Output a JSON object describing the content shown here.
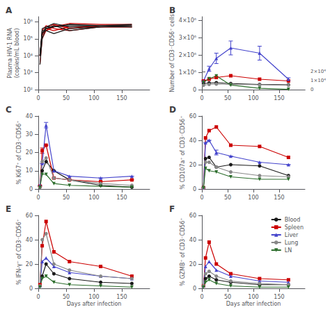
{
  "chart_data": [
    {
      "type": "line",
      "title": "A",
      "ylabel": "Plasma HIV-1 RNA\n(copies/mL blood)",
      "log": "y",
      "grid": false,
      "xlim": [
        0,
        200
      ],
      "xticks": [
        0,
        50,
        100,
        150
      ],
      "ylim": [
        100,
        2000000
      ],
      "yticks": [
        {
          "value": 100,
          "label": "10²"
        },
        {
          "value": 1000,
          "label": "10³"
        },
        {
          "value": 10000,
          "label": "10⁴"
        },
        {
          "value": 100000,
          "label": "10⁵"
        },
        {
          "value": 1000000,
          "label": "10⁶"
        }
      ],
      "x": [
        3,
        7,
        14,
        28,
        56,
        112,
        168
      ],
      "series": [
        {
          "color": "#cc0000",
          "values": [
            10000,
            150000,
            500000,
            700000,
            400000,
            600000,
            600000
          ]
        },
        {
          "color": "#cc0000",
          "values": [
            3000,
            100000,
            300000,
            500000,
            800000,
            700000,
            700000
          ]
        },
        {
          "color": "#cc0000",
          "values": [
            10000,
            200000,
            400000,
            300000,
            500000,
            500000,
            500000
          ]
        },
        {
          "color": "#cc0000",
          "values": [
            10000,
            300000,
            600000,
            400000,
            300000,
            500000,
            500000
          ]
        },
        {
          "color": "#cc0000",
          "values": [
            10000,
            200000,
            300000,
            600000,
            500000,
            500000,
            500000
          ]
        },
        {
          "color": "#1a1a1a",
          "values": [
            10000,
            200000,
            500000,
            500000,
            700000,
            600000,
            600000
          ]
        },
        {
          "color": "#1a1a1a",
          "values": [
            3000,
            100000,
            400000,
            500000,
            600000,
            600000,
            500000
          ]
        },
        {
          "color": "#1a1a1a",
          "values": [
            10000,
            300000,
            300000,
            200000,
            400000,
            500000,
            600000
          ]
        },
        {
          "color": "#1a1a1a",
          "values": [
            10000,
            400000,
            500000,
            800000,
            500000,
            600000,
            700000
          ]
        },
        {
          "color": "#1a1a1a",
          "values": [
            10000,
            200000,
            400000,
            600000,
            300000,
            500000,
            500000
          ]
        }
      ]
    },
    {
      "type": "line",
      "title": "B",
      "ylabel": "Number of CD3⁻CD56⁺ cells",
      "grid": false,
      "xlim": [
        0,
        200
      ],
      "xticks": [
        0,
        50,
        100,
        150
      ],
      "ylim": [
        0,
        4200000
      ],
      "yticks": [
        0,
        {
          "value": 1000000,
          "label": "1×10⁶"
        },
        {
          "value": 2000000,
          "label": "2×10⁶"
        },
        {
          "value": 3000000,
          "label": "3×10⁶"
        },
        {
          "value": 4000000,
          "label": "4×10⁶"
        }
      ],
      "x": [
        3,
        14,
        28,
        56,
        112,
        168
      ],
      "series": [
        {
          "color": "#1a1a1a",
          "marker": "circle",
          "values": [
            350000,
            380000,
            400000,
            350000,
            300000,
            280000
          ]
        },
        {
          "color": "#cc0000",
          "marker": "square",
          "values": [
            500000,
            600000,
            700000,
            800000,
            600000,
            500000
          ]
        },
        {
          "color": "#4444cc",
          "marker": "triangle",
          "values": [
            500000,
            1200000,
            1800000,
            2400000,
            2100000,
            600000
          ],
          "yerr": [
            30000,
            150000,
            300000,
            400000,
            400000,
            80000
          ]
        },
        {
          "color": "#888888",
          "marker": "circle",
          "values": [
            250000,
            300000,
            320000,
            300000,
            280000,
            250000
          ]
        }
      ]
    },
    {
      "type": "line",
      "tick_labels": "y",
      "grid": false,
      "xlim": [
        0,
        200
      ],
      "xticks": [
        0,
        50,
        100,
        150
      ],
      "ylim": [
        0,
        20000
      ],
      "yticks": [
        0,
        {
          "value": 10000,
          "label": "1×10⁴"
        },
        {
          "value": 20000,
          "label": "2×10⁴"
        }
      ],
      "x": [
        3,
        14,
        28,
        56,
        112,
        168
      ],
      "series": [
        {
          "color": "#2d6e2d",
          "marker": "triangle_down",
          "values": [
            8000,
            12000,
            15000,
            5000,
            1500,
            300
          ]
        }
      ]
    },
    {
      "type": "line",
      "title": "C",
      "ylabel": "% Ki67⁺ of CD3⁻CD56⁺",
      "grid": false,
      "xlim": [
        0,
        200
      ],
      "xticks": [
        0,
        50,
        100,
        150
      ],
      "ylim": [
        0,
        40
      ],
      "yticks": [
        0,
        10,
        20,
        30,
        40
      ],
      "x": [
        3,
        7,
        14,
        28,
        56,
        112,
        168
      ],
      "series": [
        {
          "color": "#1a1a1a",
          "marker": "circle",
          "values": [
            1,
            10,
            15,
            10,
            5,
            2,
            1
          ]
        },
        {
          "color": "#cc0000",
          "marker": "square",
          "values": [
            1.5,
            21,
            24,
            6,
            5,
            4,
            5
          ],
          "yerr": [
            0,
            1.5,
            0,
            0,
            0,
            0,
            0
          ]
        },
        {
          "color": "#4444cc",
          "marker": "triangle",
          "values": [
            2,
            14,
            35,
            10,
            7,
            6,
            7
          ],
          "yerr": [
            0,
            0,
            1.5,
            0,
            0,
            0,
            0
          ]
        },
        {
          "color": "#888888",
          "marker": "circle",
          "values": [
            1,
            15,
            17,
            6,
            5,
            3,
            2
          ]
        },
        {
          "color": "#2d6e2d",
          "marker": "triangle_down",
          "values": [
            1,
            8,
            8,
            3,
            2,
            1.5,
            1
          ]
        }
      ]
    },
    {
      "type": "line",
      "title": "D",
      "ylabel": "% CD107a⁺ of CD3⁻CD56⁺",
      "grid": false,
      "xlim": [
        0,
        200
      ],
      "xticks": [
        0,
        50,
        100,
        150
      ],
      "ylim": [
        0,
        60
      ],
      "yticks": [
        0,
        20,
        40,
        60
      ],
      "x": [
        3,
        7,
        14,
        28,
        56,
        112,
        168
      ],
      "series": [
        {
          "color": "#1a1a1a",
          "marker": "circle",
          "values": [
            1,
            25,
            26,
            18,
            20,
            19,
            11
          ]
        },
        {
          "color": "#cc0000",
          "marker": "square",
          "values": [
            1,
            42,
            48,
            51,
            36,
            35,
            26
          ]
        },
        {
          "color": "#4444cc",
          "marker": "triangle",
          "values": [
            1,
            38,
            40,
            30,
            27,
            22,
            20
          ],
          "yerr": [
            0,
            0,
            0,
            2,
            0,
            0,
            0
          ]
        },
        {
          "color": "#888888",
          "marker": "circle",
          "values": [
            1,
            22,
            22,
            18,
            14,
            11,
            10
          ]
        },
        {
          "color": "#2d6e2d",
          "marker": "triangle_down",
          "values": [
            1,
            17,
            15,
            14,
            10,
            8,
            8
          ]
        }
      ]
    },
    {
      "type": "line",
      "title": "E",
      "ylabel": "% IFN-γ⁺ of CD3⁻CD56⁺",
      "xlabel": "Days after infection",
      "grid": false,
      "xlim": [
        0,
        200
      ],
      "xticks": [
        0,
        50,
        100,
        150
      ],
      "ylim": [
        0,
        60
      ],
      "yticks": [
        0,
        20,
        40,
        60
      ],
      "x": [
        3,
        7,
        14,
        28,
        56,
        112,
        168
      ],
      "series": [
        {
          "color": "#1a1a1a",
          "marker": "circle",
          "values": [
            2,
            10,
            20,
            12,
            8,
            5,
            4
          ]
        },
        {
          "color": "#cc0000",
          "marker": "square",
          "values": [
            3,
            35,
            55,
            30,
            22,
            18,
            10
          ]
        },
        {
          "color": "#4444cc",
          "marker": "triangle",
          "values": [
            2,
            22,
            25,
            18,
            13,
            10,
            8
          ]
        },
        {
          "color": "#888888",
          "marker": "circle",
          "values": [
            2,
            40,
            45,
            20,
            15,
            10,
            8
          ]
        },
        {
          "color": "#2d6e2d",
          "marker": "triangle_down",
          "values": [
            1,
            8,
            10,
            5,
            3,
            2,
            1
          ]
        }
      ]
    },
    {
      "type": "line",
      "title": "F",
      "ylabel": "% GZMB⁺ of CD3⁻CD56⁺",
      "xlabel": "Days after infection",
      "grid": false,
      "legend": "upper right",
      "xlim": [
        0,
        200
      ],
      "xticks": [
        0,
        50,
        100,
        150
      ],
      "ylim": [
        0,
        60
      ],
      "yticks": [
        0,
        20,
        40,
        60
      ],
      "x": [
        3,
        7,
        14,
        28,
        56,
        112,
        168
      ],
      "series": [
        {
          "name": "Blood",
          "color": "#1a1a1a",
          "marker": "circle",
          "values": [
            2,
            8,
            10,
            7,
            5,
            3,
            3
          ]
        },
        {
          "name": "Spleen",
          "color": "#cc0000",
          "marker": "square",
          "values": [
            2,
            25,
            38,
            20,
            12,
            8,
            7
          ]
        },
        {
          "name": "Liver",
          "color": "#4444cc",
          "marker": "triangle",
          "values": [
            2,
            18,
            22,
            15,
            10,
            6,
            5
          ]
        },
        {
          "name": "Lung",
          "color": "#888888",
          "marker": "circle",
          "values": [
            2,
            12,
            14,
            10,
            6,
            4,
            3
          ]
        },
        {
          "name": "LN",
          "color": "#2d6e2d",
          "marker": "triangle_down",
          "values": [
            1,
            5,
            7,
            4,
            2,
            1,
            1
          ]
        }
      ]
    }
  ]
}
